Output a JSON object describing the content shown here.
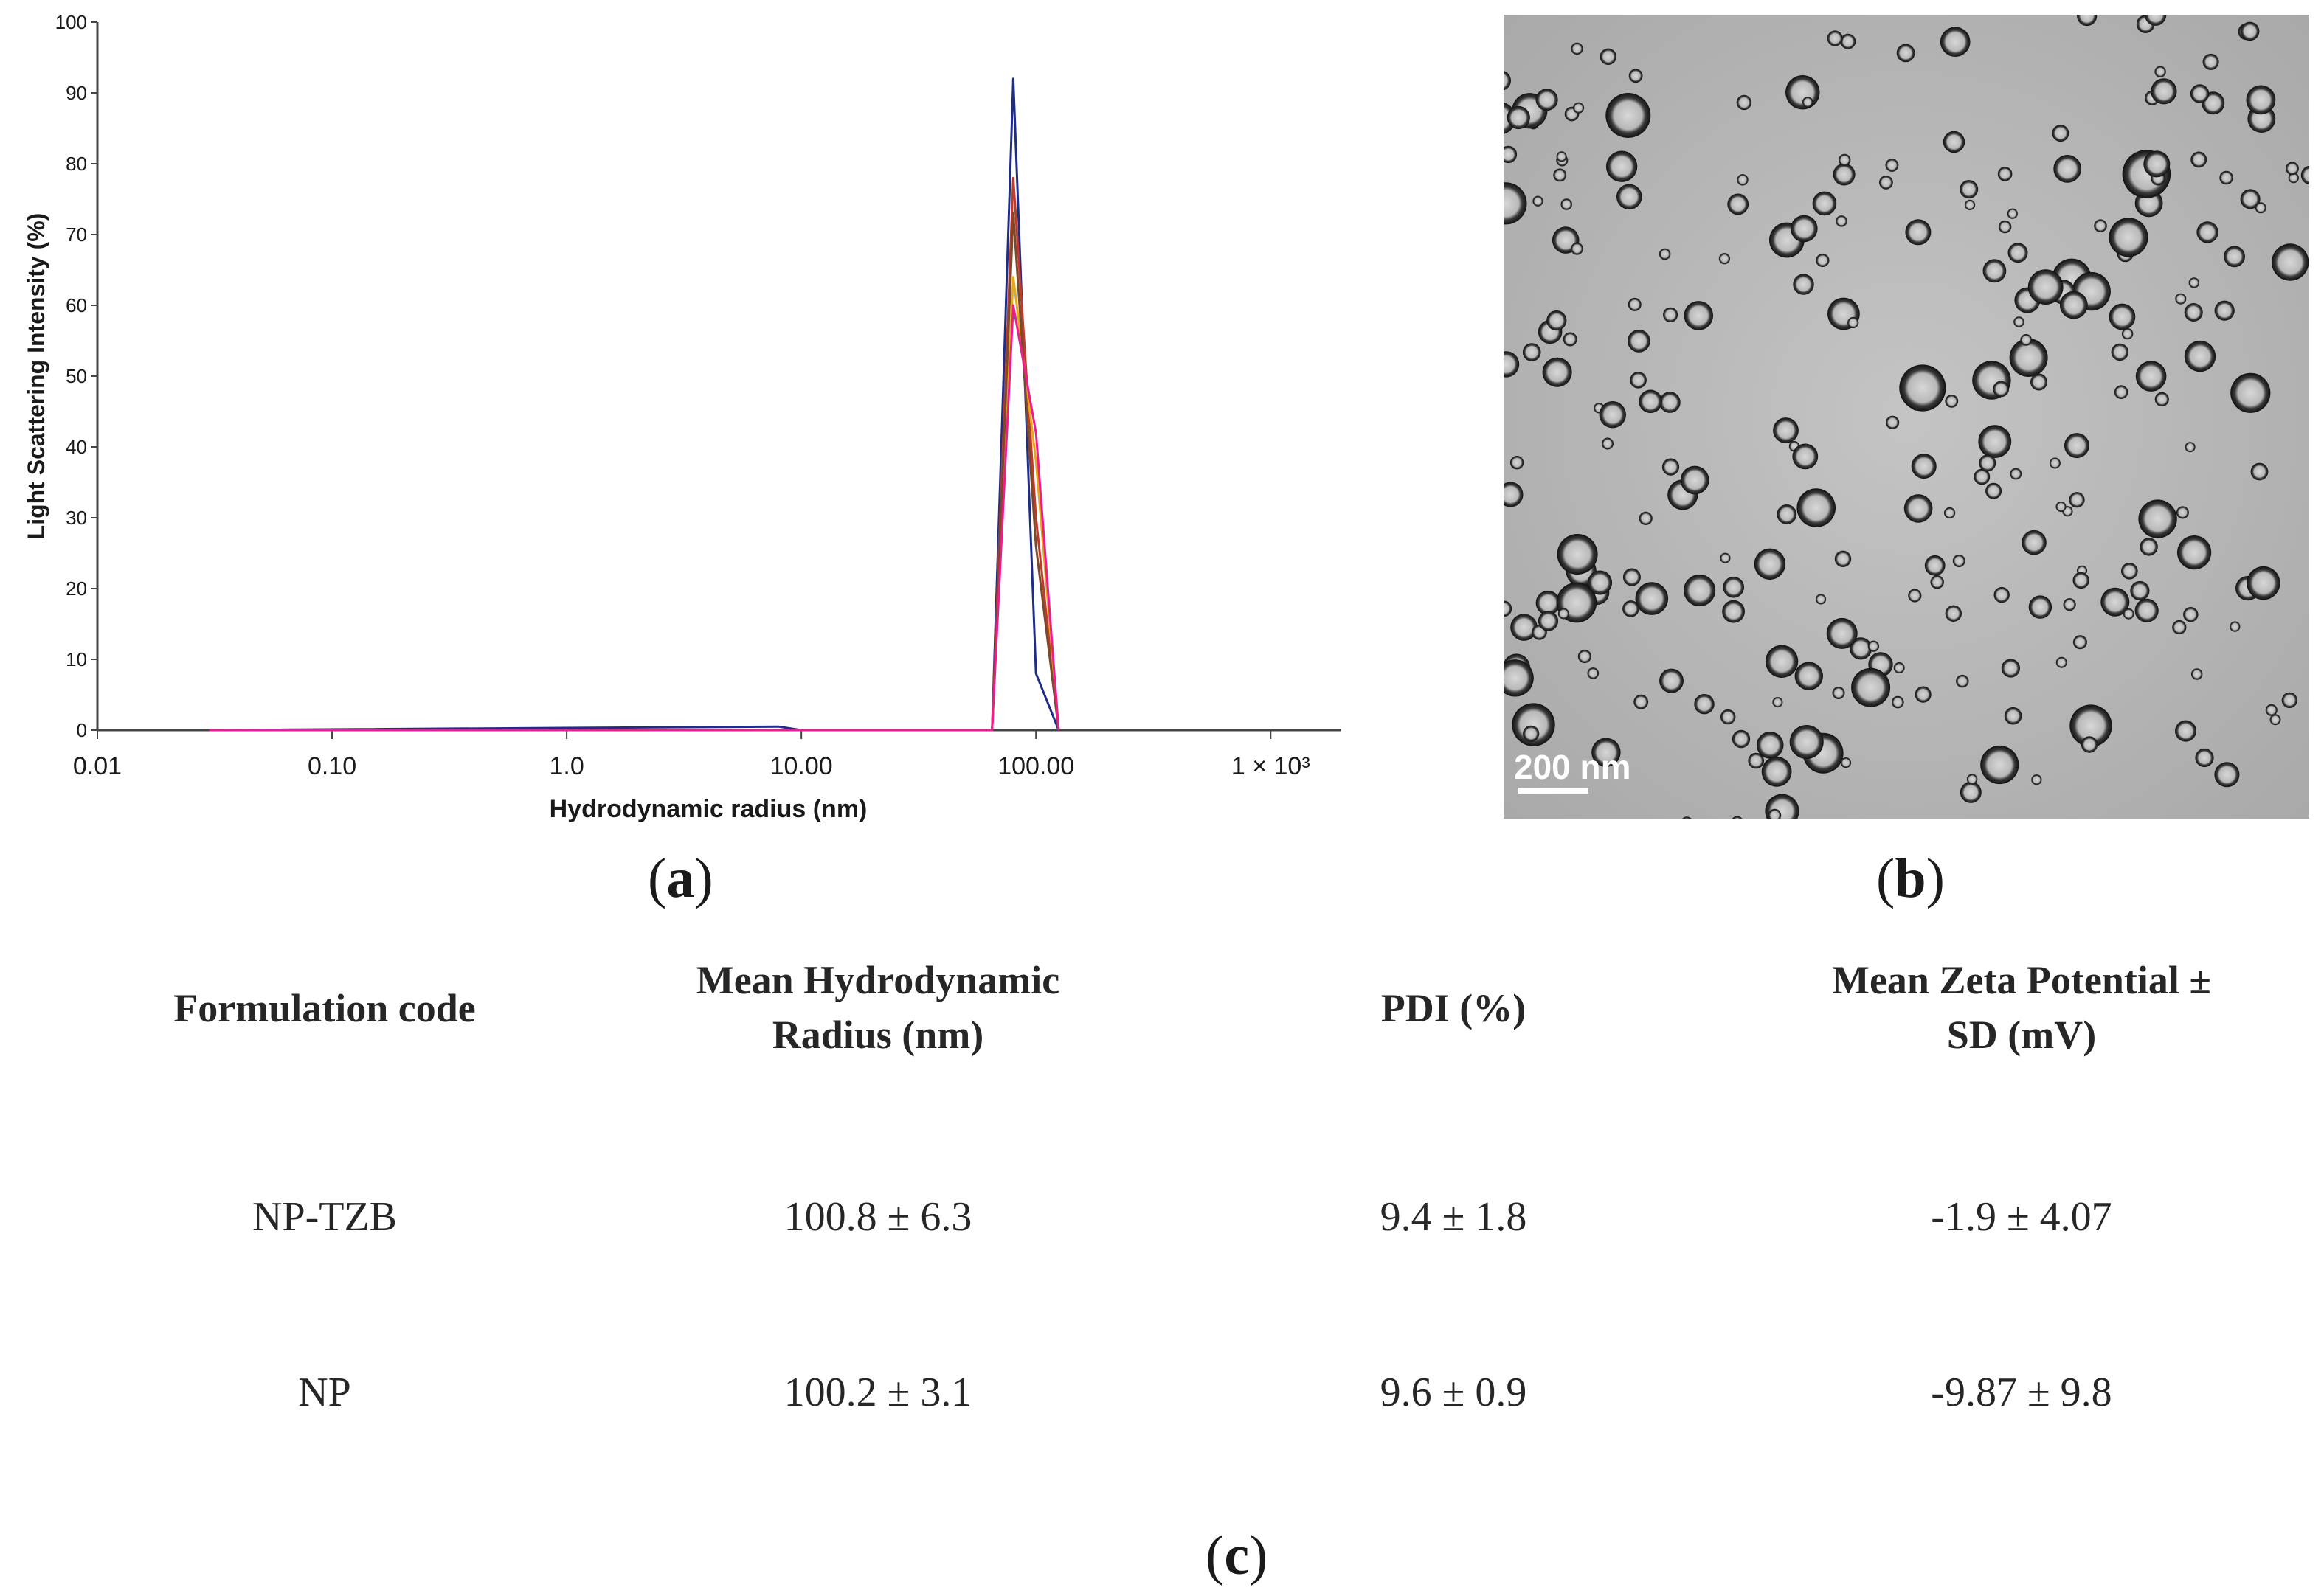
{
  "chart_data": {
    "type": "line",
    "xscale": "log",
    "xlabel": "Hydrodynamic radius (nm)",
    "ylabel": "Light Scattering Intensity (%)",
    "xlim": [
      0.01,
      2000
    ],
    "ylim": [
      0,
      100
    ],
    "x_ticks": [
      {
        "value": 0.01,
        "label": "0.01"
      },
      {
        "value": 0.1,
        "label": "0.10"
      },
      {
        "value": 1,
        "label": "1.0"
      },
      {
        "value": 10,
        "label": "10.00"
      },
      {
        "value": 100,
        "label": "100.00"
      },
      {
        "value": 1000,
        "label": "1 × 10³"
      }
    ],
    "y_ticks": [
      0,
      10,
      20,
      30,
      40,
      50,
      60,
      70,
      80,
      90,
      100
    ],
    "series": [
      {
        "color": "#1f2d8a",
        "x": [
          0.03,
          8,
          10,
          65,
          80,
          100,
          125
        ],
        "y": [
          0,
          0.5,
          0,
          0,
          92,
          8,
          0
        ]
      },
      {
        "color": "#c0392b",
        "x": [
          0.03,
          65,
          80,
          100,
          125
        ],
        "y": [
          0,
          0,
          78,
          30,
          0
        ]
      },
      {
        "color": "#e6a817",
        "x": [
          0.03,
          65,
          80,
          100,
          125
        ],
        "y": [
          0,
          0,
          64,
          38,
          0
        ]
      },
      {
        "color": "#7a4a2a",
        "x": [
          0.03,
          65,
          80,
          100,
          125
        ],
        "y": [
          0,
          0,
          73,
          26,
          0
        ]
      },
      {
        "color": "#ee1c8c",
        "x": [
          0.03,
          65,
          80,
          100,
          125
        ],
        "y": [
          0,
          0,
          60,
          42,
          0
        ]
      }
    ]
  },
  "micrograph": {
    "scale_bar_label": "200 nm"
  },
  "captions": {
    "a": "a",
    "b": "b",
    "c": "c"
  },
  "table": {
    "headers": [
      [
        "Formulation code"
      ],
      [
        "Mean Hydrodynamic",
        "Radius (nm)"
      ],
      [
        "PDI (%)"
      ],
      [
        "Mean Zeta Potential ±",
        "SD (mV)"
      ]
    ],
    "rows": [
      [
        "NP-TZB",
        "100.8 ± 6.3",
        "9.4 ± 1.8",
        "-1.9 ± 4.07"
      ],
      [
        "NP",
        "100.2 ± 3.1",
        "9.6 ± 0.9",
        "-9.87 ± 9.8"
      ]
    ]
  }
}
